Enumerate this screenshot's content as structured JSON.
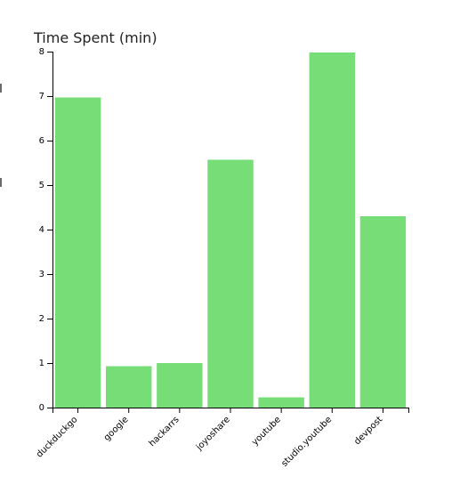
{
  "chart_data": {
    "type": "bar",
    "title": "Time Spent (min)",
    "xlabel": "",
    "ylabel": "",
    "categories": [
      "duckduckgo",
      "google",
      "hackarrs",
      "joyoshare",
      "youtube",
      "studio.youtube",
      "devpost"
    ],
    "values": [
      6.97,
      0.93,
      1.0,
      5.57,
      0.23,
      7.98,
      4.3
    ],
    "ylim": [
      0,
      8
    ],
    "yticks": [
      0,
      1,
      2,
      3,
      4,
      5,
      6,
      7,
      8
    ],
    "grid": false,
    "legend": "none",
    "bar_color": "#77dd77"
  }
}
